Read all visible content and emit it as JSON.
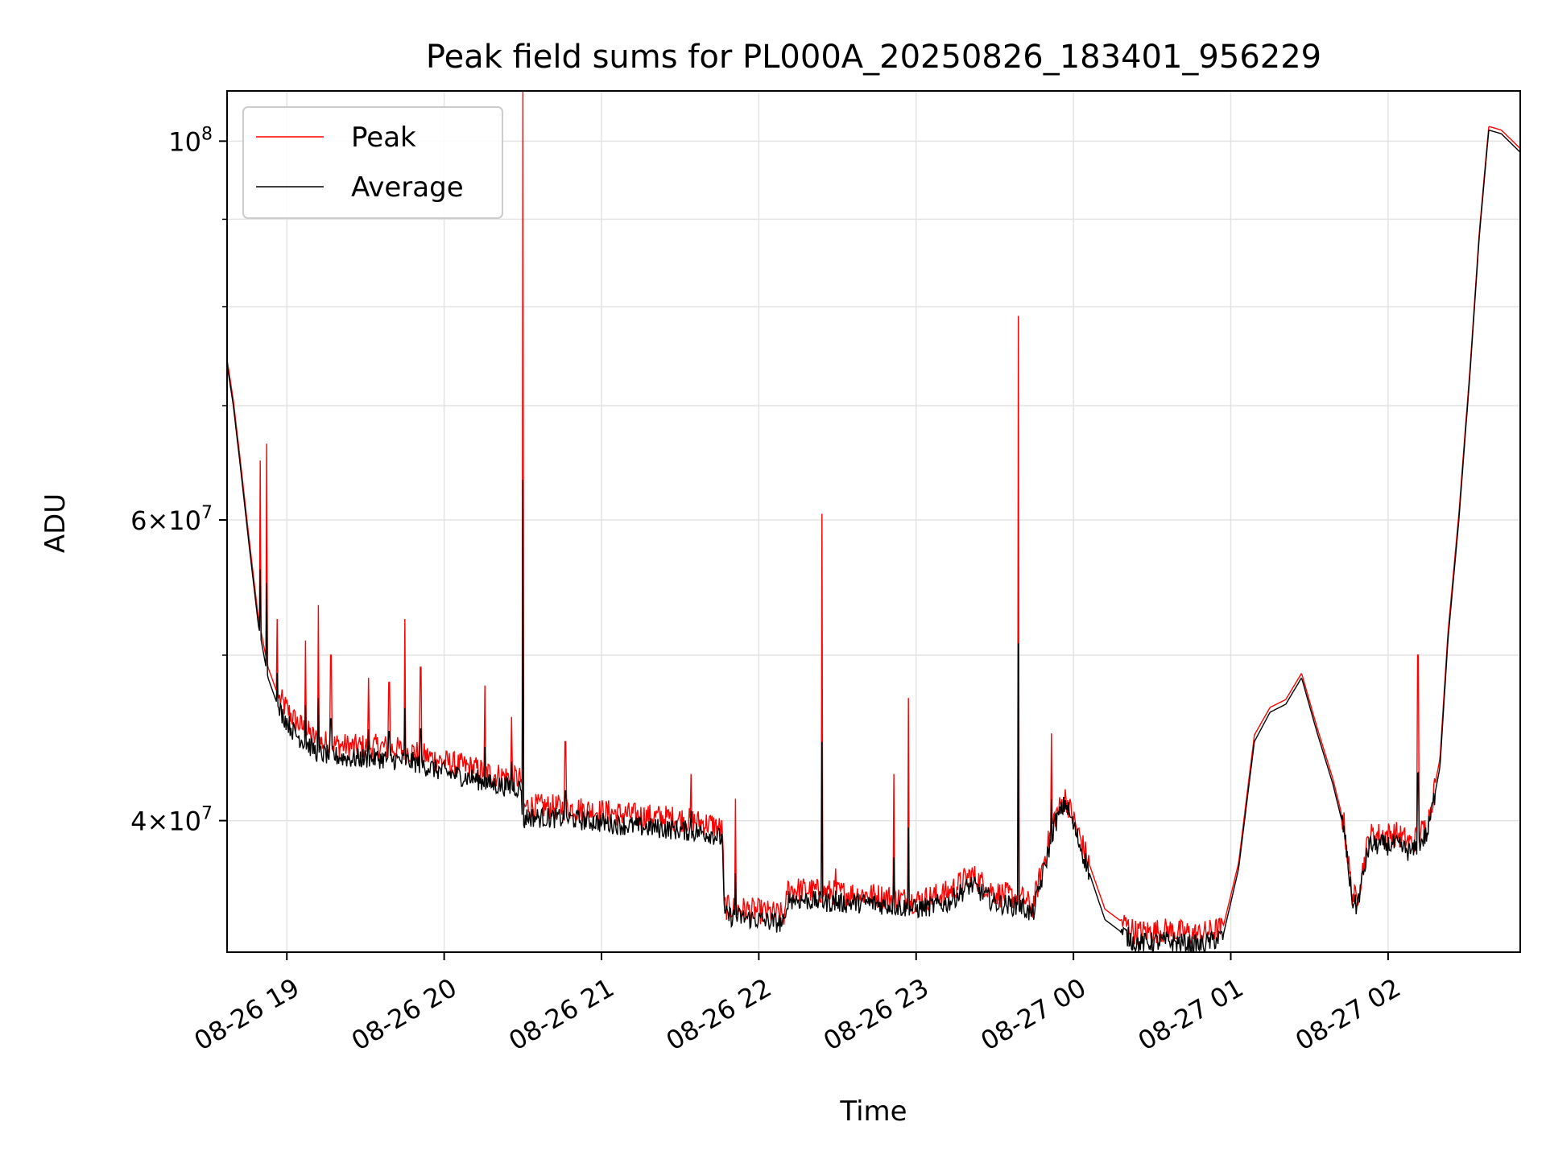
{
  "chart_data": {
    "type": "line",
    "title": "Peak field sums for PL000A_20250826_183401_956229",
    "xlabel": "Time",
    "ylabel": "ADU",
    "yscale": "log",
    "ylim": [
      33500000,
      107000000
    ],
    "xlim_hours": [
      18.62,
      26.84
    ],
    "grid": true,
    "legend_position": "upper-left",
    "x_ticks": [
      {
        "label": "08-26 19",
        "hour": 19
      },
      {
        "label": "08-26 20",
        "hour": 20
      },
      {
        "label": "08-26 21",
        "hour": 21
      },
      {
        "label": "08-26 22",
        "hour": 22
      },
      {
        "label": "08-26 23",
        "hour": 23
      },
      {
        "label": "08-27 00",
        "hour": 24
      },
      {
        "label": "08-27 01",
        "hour": 25
      },
      {
        "label": "08-27 02",
        "hour": 26
      }
    ],
    "y_ticks": [
      {
        "base": "4",
        "exp": "7",
        "value": 40000000,
        "times": true
      },
      {
        "base": "6",
        "exp": "7",
        "value": 60000000,
        "times": true
      },
      {
        "base": "10",
        "exp": "8",
        "value": 100000000,
        "times": false
      }
    ],
    "y_minor_ticks": [
      50000000,
      70000000,
      80000000,
      90000000
    ],
    "series": [
      {
        "name": "Average",
        "color": "#000000",
        "x": [
          18.62,
          18.66,
          18.7,
          18.76,
          18.82,
          18.88,
          18.95,
          19.05,
          19.2,
          19.4,
          19.6,
          19.8,
          20.0,
          20.2,
          20.3,
          20.49,
          20.5,
          20.52,
          20.8,
          21.0,
          21.2,
          21.5,
          21.7,
          21.77,
          21.78,
          22.0,
          22.17,
          22.18,
          22.5,
          22.7,
          23.0,
          23.2,
          23.35,
          23.5,
          23.68,
          23.74,
          23.8,
          23.88,
          23.95,
          24.05,
          24.2,
          24.4,
          24.6,
          24.8,
          24.95,
          25.05,
          25.15,
          25.25,
          25.35,
          25.45,
          25.55,
          25.65,
          25.72,
          25.77,
          25.8,
          25.88,
          26.05,
          26.15,
          26.25,
          26.33,
          26.38,
          26.45,
          26.52,
          26.58,
          26.64,
          26.72,
          26.84
        ],
        "y": [
          74000000,
          70000000,
          65000000,
          58000000,
          52000000,
          48500000,
          46500000,
          45000000,
          43800000,
          43500000,
          43500000,
          43300000,
          42700000,
          42300000,
          42000000,
          41800000,
          39800000,
          40200000,
          40100000,
          39900000,
          39700000,
          39500000,
          39300000,
          39000000,
          35200000,
          35000000,
          34800000,
          36000000,
          35800000,
          35800000,
          35500000,
          35800000,
          36700000,
          35800000,
          35600000,
          35200000,
          37000000,
          39800000,
          41000000,
          38500000,
          35000000,
          33900000,
          34000000,
          33800000,
          34200000,
          37500000,
          44500000,
          46300000,
          46800000,
          48500000,
          45000000,
          42000000,
          39500000,
          36000000,
          35600000,
          38700000,
          38700000,
          38300000,
          39300000,
          43000000,
          51000000,
          60000000,
          73000000,
          88000000,
          101500000,
          101000000,
          98500000
        ]
      },
      {
        "name": "Peak",
        "color": "#ff0000",
        "x": [
          18.62,
          18.66,
          18.7,
          18.76,
          18.82,
          18.88,
          18.95,
          19.05,
          19.2,
          19.4,
          19.6,
          19.8,
          20.0,
          20.2,
          20.3,
          20.49,
          20.5,
          20.52,
          20.8,
          21.0,
          21.2,
          21.5,
          21.7,
          21.77,
          21.78,
          22.0,
          22.17,
          22.18,
          22.5,
          22.7,
          23.0,
          23.2,
          23.35,
          23.5,
          23.68,
          23.74,
          23.8,
          23.88,
          23.95,
          24.05,
          24.2,
          24.4,
          24.6,
          24.8,
          24.95,
          25.05,
          25.15,
          25.25,
          25.35,
          25.45,
          25.55,
          25.65,
          25.72,
          25.77,
          25.8,
          25.88,
          26.05,
          26.15,
          26.25,
          26.33,
          26.38,
          26.45,
          26.52,
          26.58,
          26.64,
          26.72,
          26.84
        ],
        "y": [
          74500000,
          70500000,
          65500000,
          58500000,
          52500000,
          49200000,
          47200000,
          45800000,
          44500000,
          44200000,
          44200000,
          43900000,
          43300000,
          42900000,
          42600000,
          42300000,
          40500000,
          40800000,
          40700000,
          40500000,
          40300000,
          40100000,
          39800000,
          39500000,
          35600000,
          35400000,
          35200000,
          36500000,
          36300000,
          36200000,
          35900000,
          36300000,
          37200000,
          36300000,
          36000000,
          35600000,
          37500000,
          40200000,
          41300000,
          38900000,
          35500000,
          34400000,
          34500000,
          34300000,
          34600000,
          37800000,
          44900000,
          46600000,
          47100000,
          48800000,
          45300000,
          42300000,
          39800000,
          36300000,
          35900000,
          39200000,
          39300000,
          38800000,
          39800000,
          43500000,
          51500000,
          60500000,
          73500000,
          88500000,
          102000000,
          101500000,
          99000000
        ]
      }
    ],
    "peak_spikes": [
      {
        "x": 18.83,
        "y": 65000000
      },
      {
        "x": 18.87,
        "y": 66500000
      },
      {
        "x": 18.94,
        "y": 52500000
      },
      {
        "x": 19.12,
        "y": 51000000
      },
      {
        "x": 19.2,
        "y": 53500000
      },
      {
        "x": 19.28,
        "y": 50000000
      },
      {
        "x": 19.52,
        "y": 48500000
      },
      {
        "x": 19.65,
        "y": 48200000
      },
      {
        "x": 19.75,
        "y": 52500000
      },
      {
        "x": 19.85,
        "y": 49200000
      },
      {
        "x": 20.26,
        "y": 48000000
      },
      {
        "x": 20.43,
        "y": 46000000
      },
      {
        "x": 20.5,
        "y": 107000000
      },
      {
        "x": 20.77,
        "y": 44500000
      },
      {
        "x": 21.57,
        "y": 42600000
      },
      {
        "x": 21.85,
        "y": 41200000
      },
      {
        "x": 22.4,
        "y": 60500000
      },
      {
        "x": 22.49,
        "y": 37500000
      },
      {
        "x": 22.86,
        "y": 42600000
      },
      {
        "x": 22.95,
        "y": 47200000
      },
      {
        "x": 23.65,
        "y": 79000000
      },
      {
        "x": 23.86,
        "y": 45000000
      },
      {
        "x": 26.19,
        "y": 50000000
      }
    ]
  },
  "legend": {
    "peak_label": "Peak",
    "average_label": "Average"
  }
}
